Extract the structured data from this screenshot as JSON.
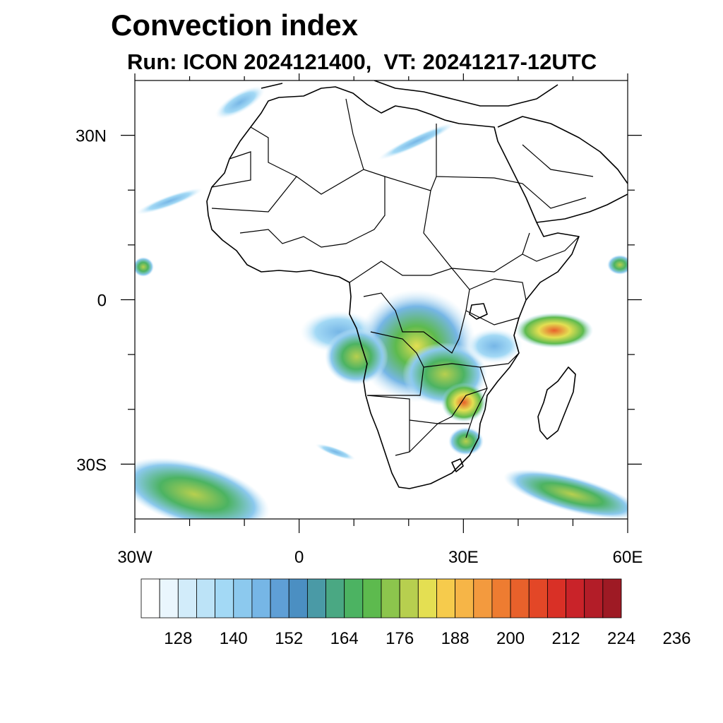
{
  "title": "Convection index",
  "subtitle": "Run: ICON 2024121400,  VT: 20241217-12UTC",
  "map": {
    "lon_range": [
      -30,
      60
    ],
    "lat_range": [
      -40,
      40
    ],
    "lon_tick_labels": [
      {
        "lon": -30,
        "label": "30W"
      },
      {
        "lon": 0,
        "label": "0"
      },
      {
        "lon": 30,
        "label": "30E"
      },
      {
        "lon": 60,
        "label": "60E"
      }
    ],
    "lat_tick_labels": [
      {
        "lat": 30,
        "label": "30N"
      },
      {
        "lat": 0,
        "label": "0"
      },
      {
        "lat": -30,
        "label": "30S"
      }
    ],
    "lon_minor_ticks": [
      -20,
      -10,
      10,
      20,
      40,
      50
    ],
    "lat_minor_ticks": [
      20,
      10,
      -10,
      -20
    ]
  },
  "colorbar": {
    "labels": [
      "128",
      "140",
      "152",
      "164",
      "176",
      "188",
      "200",
      "212",
      "224",
      "236"
    ],
    "colors": [
      "#ffffff",
      "#eaf6fd",
      "#d2ecfa",
      "#bce3f7",
      "#a3d9f5",
      "#8cc9ee",
      "#76b6e6",
      "#5f9fd6",
      "#4b8fc2",
      "#4a9aa6",
      "#4aa883",
      "#4cb362",
      "#5dba4e",
      "#8cc54d",
      "#b7cf4f",
      "#e4df52",
      "#f6cb4c",
      "#f6b547",
      "#f39a3e",
      "#ee7c31",
      "#e8612b",
      "#e34727",
      "#d93026",
      "#c92329",
      "#b31d28",
      "#9e1a24"
    ]
  }
}
